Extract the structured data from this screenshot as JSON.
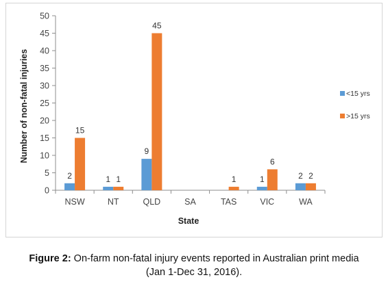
{
  "chart_data": {
    "type": "bar",
    "categories": [
      "NSW",
      "NT",
      "QLD",
      "SA",
      "TAS",
      "VIC",
      "WA"
    ],
    "series": [
      {
        "name": "<15 yrs",
        "values": [
          2,
          1,
          9,
          0,
          0,
          1,
          2
        ],
        "labels": [
          "2",
          "1",
          "9",
          "",
          "",
          "1",
          "2"
        ],
        "color": "#5b9bd5"
      },
      {
        "name": ">15 yrs",
        "values": [
          15,
          1,
          45,
          0,
          1,
          6,
          2
        ],
        "labels": [
          "15",
          "1",
          "45",
          "",
          "1",
          "6",
          "2"
        ],
        "color": "#ed7d31"
      }
    ],
    "yticks": [
      "0",
      "5",
      "10",
      "15",
      "20",
      "25",
      "30",
      "35",
      "40",
      "45",
      "50"
    ],
    "ylim": [
      0,
      50
    ],
    "ytick_step": 5,
    "xlabel": "State",
    "ylabel": "Number of non-fatal injuries",
    "grid": false,
    "legend_position": "right"
  },
  "caption": {
    "label": "Figure 2:",
    "text": " On-farm non-fatal injury events reported in Australian print media",
    "line2": "(Jan 1-Dec 31, 2016)."
  }
}
